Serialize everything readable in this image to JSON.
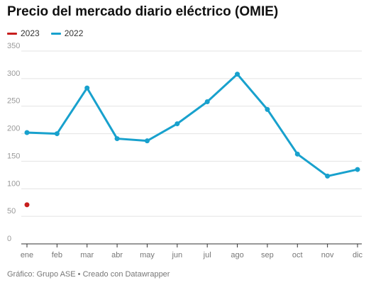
{
  "header": {
    "title": "Precio del mercado diario eléctrico (OMIE)"
  },
  "legend": [
    {
      "label": "2023",
      "color": "#c71e1d"
    },
    {
      "label": "2022",
      "color": "#18a1cd"
    }
  ],
  "chart_data": {
    "type": "line",
    "categories": [
      "ene",
      "feb",
      "mar",
      "abr",
      "may",
      "jun",
      "jul",
      "ago",
      "sep",
      "oct",
      "nov",
      "dic"
    ],
    "series": [
      {
        "name": "2023",
        "color": "#c71e1d",
        "values": [
          71,
          null,
          null,
          null,
          null,
          null,
          null,
          null,
          null,
          null,
          null,
          null
        ]
      },
      {
        "name": "2022",
        "color": "#18a1cd",
        "values": [
          202,
          200,
          283,
          191,
          187,
          218,
          258,
          308,
          244,
          163,
          123,
          135
        ]
      }
    ],
    "yticks": [
      0,
      50,
      100,
      150,
      200,
      250,
      300,
      350
    ],
    "ylim": [
      0,
      350
    ],
    "grid": true,
    "legend_position": "top-left"
  },
  "footer": {
    "text": "Gráfico: Grupo ASE • Creado con Datawrapper"
  }
}
